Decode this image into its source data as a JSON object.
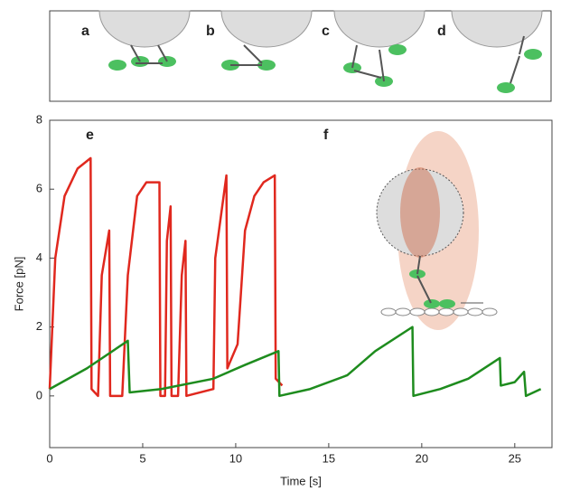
{
  "chart_data": {
    "type": "line",
    "panel_labels": [
      "a",
      "b",
      "c",
      "d",
      "e",
      "f"
    ],
    "xlabel": "Time [s]",
    "ylabel": "Force [pN]",
    "xlim": [
      0,
      27
    ],
    "ylim": [
      -1.5,
      8
    ],
    "xticks": [
      0,
      5,
      10,
      15,
      20,
      25
    ],
    "yticks": [
      0,
      2,
      4,
      6,
      8
    ],
    "series": [
      {
        "color": "#e0281e",
        "x": [
          0,
          0.3,
          0.8,
          1.5,
          2.2,
          2.25,
          2.6,
          2.8,
          3.2,
          3.25,
          3.9,
          4.2,
          4.7,
          5.2,
          5.9,
          5.95,
          6.2,
          6.3,
          6.5,
          6.55,
          6.9,
          7.1,
          7.3,
          7.35,
          8.8,
          8.9,
          9.5,
          9.55,
          10.1,
          10.5,
          11,
          11.5,
          12.1,
          12.15,
          12.5
        ],
        "values": [
          0.2,
          4,
          5.8,
          6.6,
          6.9,
          0.2,
          0,
          3.5,
          4.8,
          0,
          0,
          3.5,
          5.8,
          6.2,
          6.2,
          0,
          0,
          4.5,
          5.5,
          0,
          0,
          3.5,
          4.5,
          0,
          0.2,
          4,
          6.4,
          0.8,
          1.5,
          4.8,
          5.8,
          6.2,
          6.4,
          0.5,
          0.3
        ]
      },
      {
        "color": "#1e8c1e",
        "x": [
          0,
          2,
          4.2,
          4.3,
          6,
          8.8,
          10.5,
          12.3,
          12.35,
          14,
          16,
          17.5,
          19.5,
          19.55,
          21,
          22.5,
          24.2,
          24.25,
          25,
          25.5,
          25.6,
          26.4
        ],
        "values": [
          0.2,
          0.8,
          1.6,
          0.1,
          0.2,
          0.5,
          0.9,
          1.3,
          0,
          0.2,
          0.6,
          1.3,
          2,
          0,
          0.2,
          0.5,
          1.1,
          0.3,
          0.4,
          0.7,
          0,
          0.2
        ]
      }
    ]
  }
}
